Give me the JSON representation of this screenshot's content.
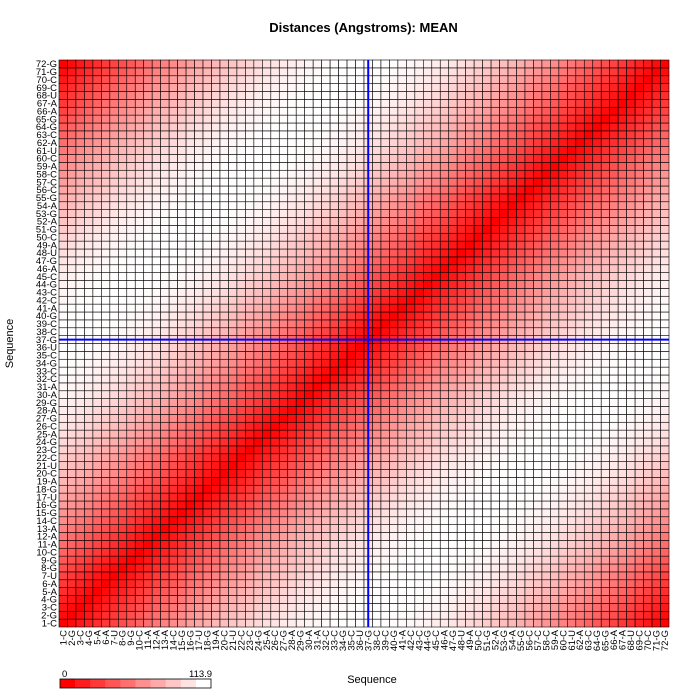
{
  "chart_data": {
    "type": "heatmap",
    "title": "Distances (Angstroms):  MEAN",
    "xlabel": "Sequence",
    "ylabel": "Sequence",
    "labels": [
      "1-C",
      "2-G",
      "3-C",
      "4-G",
      "5-A",
      "6-A",
      "7-U",
      "8-G",
      "9-G",
      "10-C",
      "11-A",
      "12-A",
      "13-A",
      "14-C",
      "15-G",
      "16-G",
      "17-U",
      "18-G",
      "19-A",
      "20-C",
      "21-U",
      "22-C",
      "23-C",
      "24-G",
      "25-A",
      "26-C",
      "27-G",
      "28-A",
      "29-G",
      "30-A",
      "31-A",
      "32-C",
      "33-C",
      "34-G",
      "35-C",
      "36-U",
      "37-G",
      "38-C",
      "39-C",
      "40-G",
      "41-A",
      "42-C",
      "43-C",
      "44-G",
      "45-C",
      "46-A",
      "47-G",
      "48-U",
      "49-A",
      "50-C",
      "51-G",
      "52-A",
      "53-G",
      "54-A",
      "55-G",
      "56-C",
      "57-C",
      "58-C",
      "59-A",
      "60-C",
      "61-U",
      "62-A",
      "63-C",
      "64-G",
      "65-G",
      "66-A",
      "67-A",
      "68-U",
      "69-C",
      "70-C",
      "71-G",
      "72-G"
    ],
    "selected": "37-G",
    "value_range": [
      0,
      113.9
    ],
    "legend": {
      "min_label": "0",
      "max_label": "113.9",
      "placement": "bottom-left"
    },
    "colors": {
      "low": "#ff0000",
      "high": "#ffffff",
      "crosshair": "#0000ff",
      "grid": "#000000"
    }
  }
}
